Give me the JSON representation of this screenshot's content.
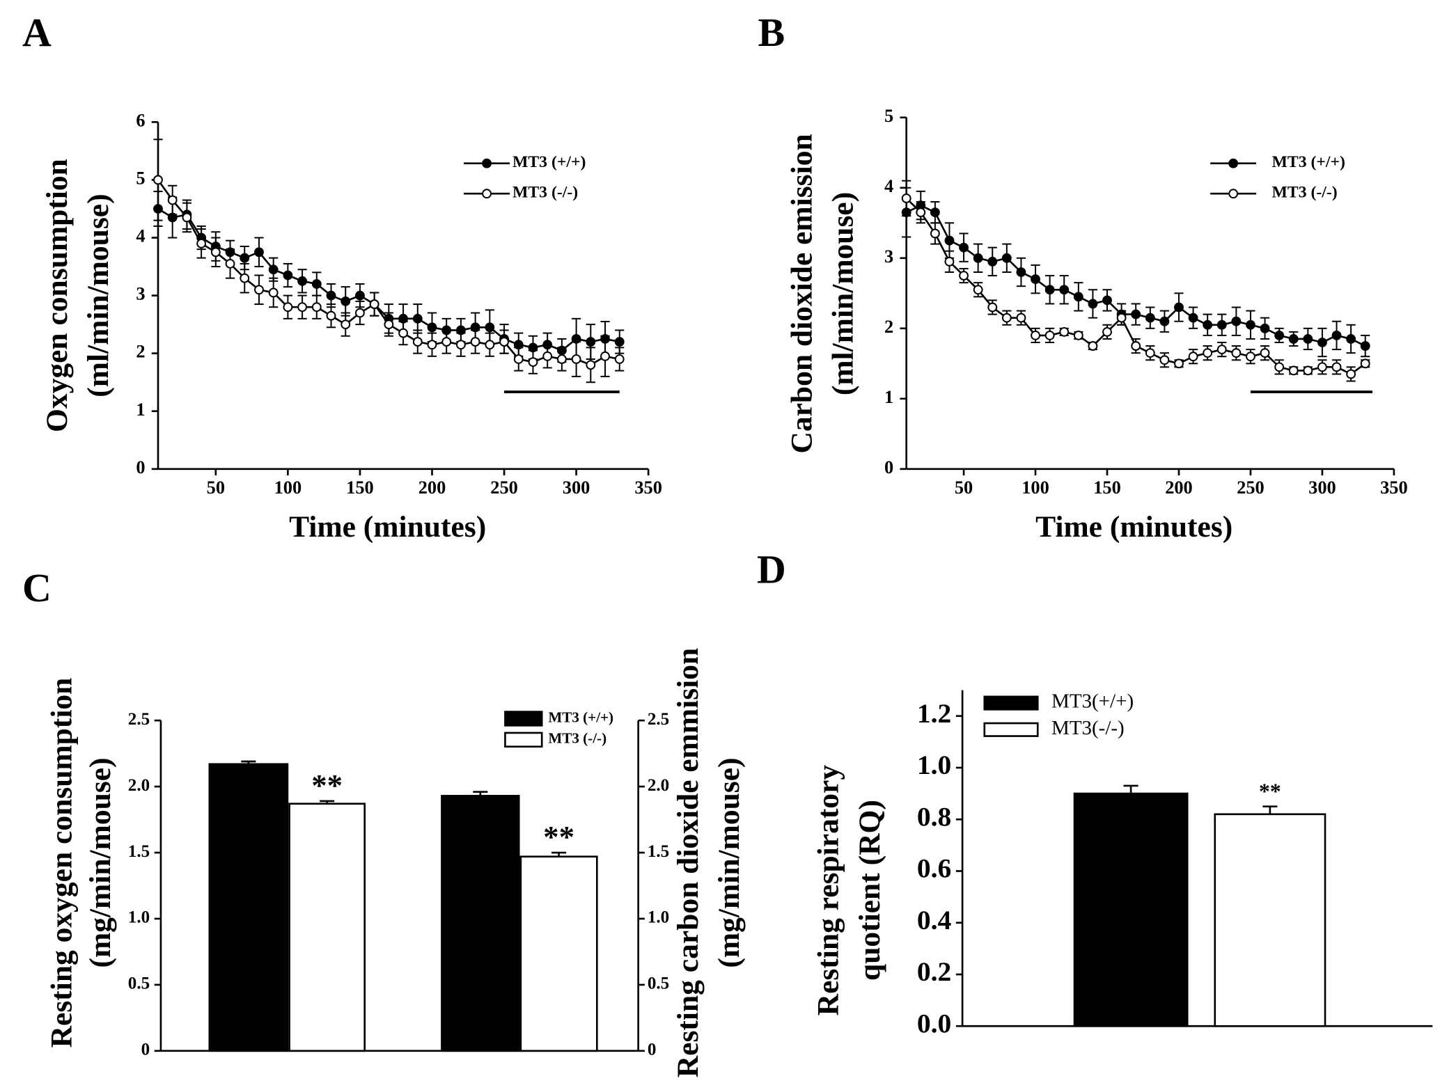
{
  "chart_data": [
    {
      "type": "line",
      "panel_label": "A",
      "xlabel": "Time (minutes)",
      "ylabel": [
        "Oxygen consumption",
        "(ml/min/mouse)"
      ],
      "x": [
        10,
        20,
        30,
        40,
        50,
        60,
        70,
        80,
        90,
        100,
        110,
        120,
        130,
        140,
        150,
        160,
        170,
        180,
        190,
        200,
        210,
        220,
        230,
        240,
        250,
        260,
        270,
        280,
        290,
        300,
        310,
        320,
        330
      ],
      "xlim": [
        10,
        350
      ],
      "xticks": [
        50,
        100,
        150,
        200,
        250,
        300,
        350
      ],
      "ylim": [
        0,
        6
      ],
      "yticks": [
        0,
        1,
        2,
        3,
        4,
        5,
        6
      ],
      "resting_window": [
        250,
        330
      ],
      "series": [
        {
          "name": "MT3 (+/+)",
          "color": "#000000",
          "marker_face": "#000000",
          "values": [
            4.5,
            4.35,
            4.4,
            4.0,
            3.85,
            3.75,
            3.65,
            3.75,
            3.45,
            3.35,
            3.25,
            3.2,
            3.0,
            2.9,
            3.0,
            2.85,
            2.6,
            2.6,
            2.6,
            2.45,
            2.4,
            2.4,
            2.45,
            2.45,
            2.25,
            2.15,
            2.1,
            2.15,
            2.05,
            2.25,
            2.2,
            2.25,
            2.2
          ],
          "errors": [
            0.3,
            0.35,
            0.25,
            0.2,
            0.25,
            0.2,
            0.2,
            0.25,
            0.2,
            0.2,
            0.2,
            0.2,
            0.2,
            0.25,
            0.2,
            0.2,
            0.25,
            0.25,
            0.25,
            0.25,
            0.2,
            0.2,
            0.25,
            0.3,
            0.25,
            0.2,
            0.2,
            0.2,
            0.2,
            0.35,
            0.3,
            0.3,
            0.2
          ]
        },
        {
          "name": "MT3 (-/-)",
          "color": "#000000",
          "marker_face": "#ffffff",
          "values": [
            5.0,
            4.65,
            4.35,
            3.9,
            3.75,
            3.55,
            3.3,
            3.1,
            3.05,
            2.8,
            2.8,
            2.8,
            2.65,
            2.5,
            2.7,
            2.85,
            2.5,
            2.35,
            2.2,
            2.15,
            2.2,
            2.15,
            2.2,
            2.15,
            2.2,
            1.9,
            1.85,
            1.95,
            1.9,
            1.9,
            1.8,
            1.95,
            1.9
          ],
          "errors": [
            0.7,
            0.25,
            0.25,
            0.25,
            0.25,
            0.25,
            0.25,
            0.25,
            0.25,
            0.2,
            0.2,
            0.2,
            0.2,
            0.2,
            0.2,
            0.2,
            0.2,
            0.2,
            0.2,
            0.2,
            0.2,
            0.2,
            0.2,
            0.2,
            0.2,
            0.2,
            0.2,
            0.2,
            0.2,
            0.3,
            0.3,
            0.35,
            0.2
          ]
        }
      ]
    },
    {
      "type": "line",
      "panel_label": "B",
      "xlabel": "Time (minutes)",
      "ylabel": [
        "Carbon dioxide emission",
        "(ml/min/mouse)"
      ],
      "x": [
        10,
        20,
        30,
        40,
        50,
        60,
        70,
        80,
        90,
        100,
        110,
        120,
        130,
        140,
        150,
        160,
        170,
        180,
        190,
        200,
        210,
        220,
        230,
        240,
        250,
        260,
        270,
        280,
        290,
        300,
        310,
        320,
        330
      ],
      "xlim": [
        10,
        350
      ],
      "xticks": [
        50,
        100,
        150,
        200,
        250,
        300,
        350
      ],
      "ylim": [
        0,
        5
      ],
      "yticks": [
        0,
        1,
        2,
        3,
        4,
        5
      ],
      "resting_window": [
        250,
        335
      ],
      "series": [
        {
          "name": "MT3 (+/+)",
          "color": "#000000",
          "marker_face": "#000000",
          "values": [
            3.65,
            3.75,
            3.65,
            3.25,
            3.15,
            3.0,
            2.95,
            3.0,
            2.8,
            2.7,
            2.55,
            2.55,
            2.45,
            2.35,
            2.4,
            2.2,
            2.2,
            2.15,
            2.1,
            2.3,
            2.15,
            2.05,
            2.05,
            2.1,
            2.05,
            2.0,
            1.9,
            1.85,
            1.85,
            1.8,
            1.9,
            1.85,
            1.75
          ],
          "errors": [
            0.35,
            0.2,
            0.15,
            0.25,
            0.2,
            0.2,
            0.2,
            0.2,
            0.2,
            0.2,
            0.2,
            0.2,
            0.2,
            0.2,
            0.15,
            0.15,
            0.15,
            0.15,
            0.15,
            0.2,
            0.15,
            0.15,
            0.15,
            0.2,
            0.2,
            0.15,
            0.1,
            0.1,
            0.15,
            0.2,
            0.2,
            0.2,
            0.15
          ]
        },
        {
          "name": "MT3 (-/-)",
          "color": "#000000",
          "marker_face": "#ffffff",
          "values": [
            3.85,
            3.65,
            3.35,
            2.95,
            2.75,
            2.55,
            2.3,
            2.15,
            2.15,
            1.9,
            1.9,
            1.95,
            1.9,
            1.75,
            1.95,
            2.15,
            1.75,
            1.65,
            1.55,
            1.5,
            1.6,
            1.65,
            1.7,
            1.65,
            1.6,
            1.65,
            1.45,
            1.4,
            1.4,
            1.45,
            1.45,
            1.35,
            1.5
          ],
          "errors": [
            0.25,
            0.15,
            0.15,
            0.15,
            0.1,
            0.1,
            0.1,
            0.1,
            0.1,
            0.1,
            0.1,
            0.05,
            0.05,
            0.05,
            0.1,
            0.1,
            0.1,
            0.1,
            0.1,
            0.05,
            0.1,
            0.1,
            0.1,
            0.1,
            0.1,
            0.1,
            0.1,
            0.05,
            0.05,
            0.1,
            0.1,
            0.1,
            0.05
          ]
        }
      ]
    },
    {
      "type": "bar",
      "panel_label": "C",
      "ylabel": [
        "Resting oxygen consumption",
        "(mg/min/mouse)"
      ],
      "y2label": [
        "Resting carbon dioxide emmision",
        "(mg/min/mouse)"
      ],
      "categories": [
        null,
        null
      ],
      "ylim": [
        0,
        2.5
      ],
      "yticks": [
        0,
        0.5,
        {
          "value": 1,
          "label": "1.0"
        },
        1.5,
        {
          "value": 2,
          "label": "2.0"
        },
        2.5
      ],
      "y2lim": [
        0,
        2.5
      ],
      "y2ticks": [
        0,
        0.5,
        {
          "value": 1,
          "label": "1.0"
        },
        1.5,
        {
          "value": 2,
          "label": "2.0"
        },
        2.5
      ],
      "series": [
        {
          "name": "MT3 (+/+)",
          "color": "#000000",
          "values": [
            2.17,
            1.93
          ],
          "errors": [
            0.02,
            0.03
          ]
        },
        {
          "name": "MT3 (-/-)",
          "color": "#ffffff",
          "values": [
            1.87,
            1.47
          ],
          "errors": [
            0.02,
            0.03
          ],
          "annotations": [
            "**",
            "**"
          ]
        }
      ]
    },
    {
      "type": "bar",
      "panel_label": "D",
      "ylabel": [
        "Resting respiratory",
        "quotient (RQ)"
      ],
      "categories": [
        null
      ],
      "ylim": [
        0,
        1.3
      ],
      "yticks": [
        {
          "value": 0,
          "label": "0.0"
        },
        0.2,
        0.4,
        0.6,
        0.8,
        {
          "value": 1,
          "label": "1.0"
        },
        1.2
      ],
      "series": [
        {
          "name": "MT3(+/+)",
          "color": "#000000",
          "values": [
            0.9
          ],
          "errors": [
            0.03
          ]
        },
        {
          "name": "MT3(-/-)",
          "color": "#ffffff",
          "values": [
            0.82
          ],
          "errors": [
            0.03
          ],
          "annotations": [
            "**"
          ]
        }
      ]
    }
  ]
}
